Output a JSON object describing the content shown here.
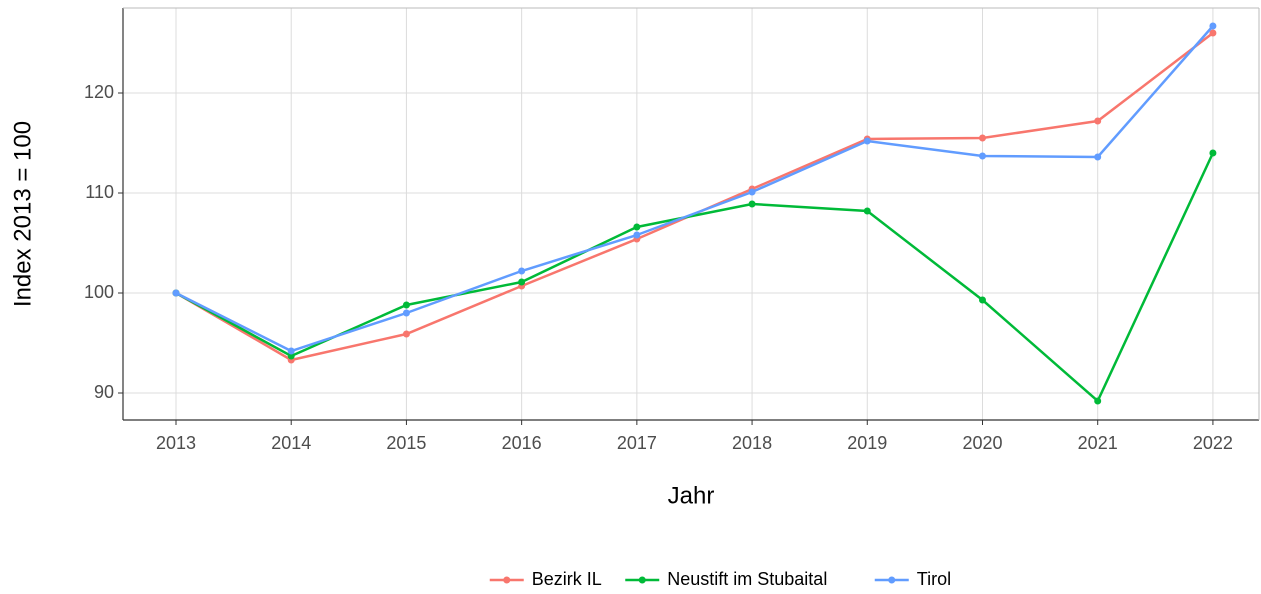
{
  "chart_data": {
    "type": "line",
    "xlabel": "Jahr",
    "ylabel": "Index  2013  = 100",
    "x": [
      2013,
      2014,
      2015,
      2016,
      2017,
      2018,
      2019,
      2020,
      2021,
      2022
    ],
    "series": [
      {
        "name": "Bezirk IL",
        "color": "#F8766D",
        "values": [
          100,
          93.3,
          95.9,
          100.7,
          105.4,
          110.4,
          115.4,
          115.5,
          117.2,
          126.0
        ]
      },
      {
        "name": "Neustift im Stubaital",
        "color": "#00BA38",
        "values": [
          100,
          93.7,
          98.8,
          101.1,
          106.6,
          108.9,
          108.2,
          99.3,
          89.2,
          114.0
        ]
      },
      {
        "name": "Tirol",
        "color": "#619CFF",
        "values": [
          100,
          94.2,
          98.0,
          102.2,
          105.8,
          110.1,
          115.2,
          113.7,
          113.6,
          126.7
        ]
      }
    ],
    "xlim": [
      2012.54,
      2022.4
    ],
    "xticks": [
      2013,
      2014,
      2015,
      2016,
      2017,
      2018,
      2019,
      2020,
      2021,
      2022
    ],
    "ylim": [
      87.3,
      128.5
    ],
    "yticks": [
      90,
      100,
      110,
      120
    ],
    "grid": true,
    "legend": "bottom"
  }
}
